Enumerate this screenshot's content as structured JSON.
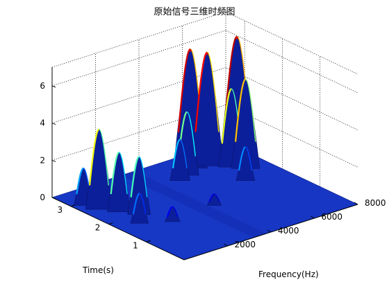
{
  "chart_data": {
    "type": "surface",
    "title": "原始信号三维时频图",
    "xlabel": "Frequency(Hz)",
    "ylabel": "Time(s)",
    "zlabel": "",
    "xlim": [
      0,
      8000
    ],
    "ylim": [
      0,
      3.5
    ],
    "zlim": [
      0,
      7
    ],
    "x_ticks": [
      2000,
      4000,
      6000,
      8000
    ],
    "y_ticks": [
      1,
      2,
      3
    ],
    "z_ticks": [
      0,
      2,
      4,
      6
    ],
    "grid": true,
    "colormap": "jet",
    "peaks": [
      {
        "frequency": 600,
        "time": 2.6,
        "amplitude": 4.3
      },
      {
        "frequency": 1000,
        "time": 2.3,
        "amplitude": 3.2
      },
      {
        "frequency": 1400,
        "time": 2.0,
        "amplitude": 3.1
      },
      {
        "frequency": 400,
        "time": 2.9,
        "amplitude": 2.0
      },
      {
        "frequency": 900,
        "time": 1.7,
        "amplitude": 1.6
      },
      {
        "frequency": 1900,
        "time": 1.4,
        "amplitude": 0.8
      },
      {
        "frequency": 5500,
        "time": 3.0,
        "amplitude": 6.4
      },
      {
        "frequency": 6100,
        "time": 2.9,
        "amplitude": 6.1
      },
      {
        "frequency": 7300,
        "time": 2.8,
        "amplitude": 6.6
      },
      {
        "frequency": 7000,
        "time": 2.4,
        "amplitude": 4.8
      },
      {
        "frequency": 6700,
        "time": 2.6,
        "amplitude": 4.2
      },
      {
        "frequency": 5000,
        "time": 2.8,
        "amplitude": 3.4
      },
      {
        "frequency": 4500,
        "time": 2.7,
        "amplitude": 2.2
      },
      {
        "frequency": 6300,
        "time": 2.0,
        "amplitude": 1.8
      },
      {
        "frequency": 4000,
        "time": 1.5,
        "amplitude": 0.6
      }
    ]
  }
}
